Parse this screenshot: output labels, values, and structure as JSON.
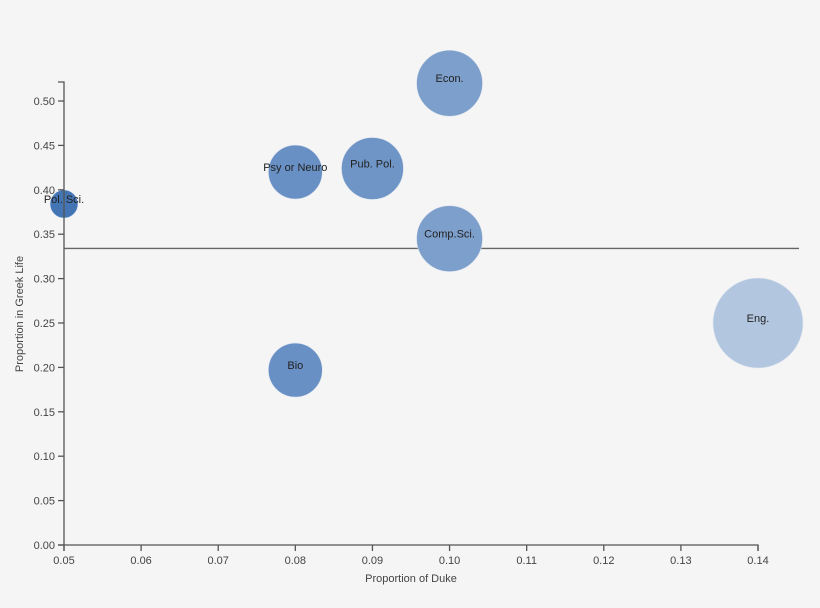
{
  "chart_data": {
    "type": "scatter",
    "subtype": "bubble",
    "title": "",
    "xlabel": "Proportion of Duke",
    "ylabel": "Proportion in Greek Life",
    "xlim": [
      0.05,
      0.14
    ],
    "ylim": [
      0.0,
      0.52
    ],
    "x_ticks": [
      "0.05",
      "0.06",
      "0.07",
      "0.08",
      "0.09",
      "0.10",
      "0.11",
      "0.12",
      "0.13",
      "0.14"
    ],
    "y_ticks": [
      "0.00",
      "0.05",
      "0.10",
      "0.15",
      "0.20",
      "0.25",
      "0.30",
      "0.35",
      "0.40",
      "0.45",
      "0.50"
    ],
    "grid": false,
    "legend": null,
    "reference_line": {
      "orientation": "horizontal",
      "y": 0.334
    },
    "points": [
      {
        "label": "Econ.",
        "x": 0.1,
        "y": 0.52,
        "radius": 33,
        "color": "#7d9fcb"
      },
      {
        "label": "Pub. Pol.",
        "x": 0.09,
        "y": 0.424,
        "radius": 31,
        "color": "#6f95c6"
      },
      {
        "label": "Psy or Neuro",
        "x": 0.08,
        "y": 0.42,
        "radius": 27,
        "color": "#6990c4"
      },
      {
        "label": "Pol. Sci.",
        "x": 0.05,
        "y": 0.384,
        "radius": 14,
        "color": "#4374b3"
      },
      {
        "label": "Comp.Sci.",
        "x": 0.1,
        "y": 0.345,
        "radius": 33,
        "color": "#7d9fcb"
      },
      {
        "label": "Eng.",
        "x": 0.14,
        "y": 0.25,
        "radius": 45,
        "color": "#b2c6df"
      },
      {
        "label": "Bio",
        "x": 0.08,
        "y": 0.197,
        "radius": 27,
        "color": "#6990c4"
      }
    ]
  },
  "colors": {
    "background": "#f5f5f5",
    "axis": "#555555",
    "text": "#444444"
  }
}
